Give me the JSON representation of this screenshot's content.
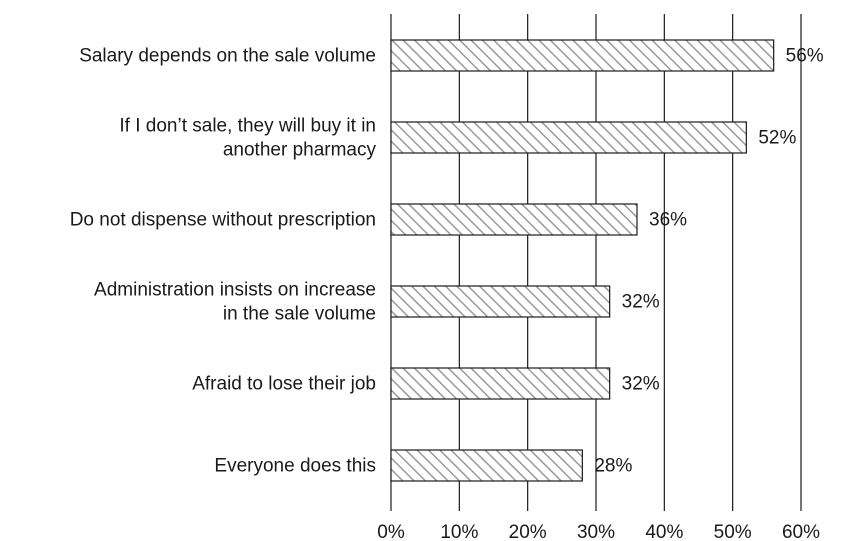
{
  "chart_data": {
    "type": "bar",
    "orientation": "horizontal",
    "categories": [
      [
        "Salary depends on the sale volume"
      ],
      [
        "If I don’t sale, they will buy it in",
        "another pharmacy"
      ],
      [
        "Do not dispense without prescription"
      ],
      [
        "Administration insists on increase",
        "in the sale volume"
      ],
      [
        "Afraid to lose their job"
      ],
      [
        "Everyone does this"
      ]
    ],
    "values": [
      56,
      52,
      36,
      32,
      32,
      28
    ],
    "value_labels": [
      "56%",
      "52%",
      "36%",
      "32%",
      "32%",
      "28%"
    ],
    "xlim": [
      0,
      60
    ],
    "xticks": [
      "0%",
      "10%",
      "20%",
      "30%",
      "40%",
      "50%",
      "60%"
    ],
    "grid": true,
    "bar_fill": "diagonal-hatch",
    "colors": {
      "ink": "#1a1a1a",
      "hatch": "#9a9a9a",
      "background": "#ffffff"
    }
  }
}
